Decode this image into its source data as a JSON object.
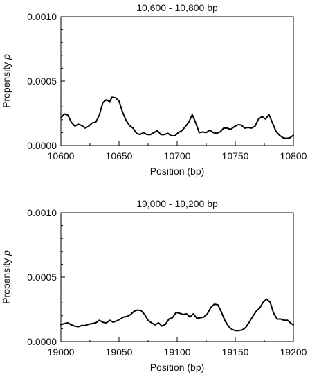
{
  "chart_data": [
    {
      "type": "line",
      "title": "10,600 - 10,800 bp",
      "xlabel": "Position (bp)",
      "ylabel_main": "Propensity ",
      "ylabel_var": "p",
      "xlim": [
        10600,
        10800
      ],
      "ylim": [
        0,
        0.001
      ],
      "xticks": [
        10600,
        10650,
        10700,
        10750,
        10800
      ],
      "xtick_labels": [
        "10600",
        "10650",
        "10700",
        "10750",
        "10800"
      ],
      "yticks": [
        0,
        0.0005,
        0.001
      ],
      "ytick_labels": [
        "0.0000",
        "0.0005",
        "0.0010"
      ],
      "grid": false,
      "legend": "none",
      "series": [
        {
          "x": [
            10600,
            10603,
            10606,
            10609,
            10612,
            10615,
            10618,
            10621,
            10624,
            10627,
            10630,
            10633,
            10636,
            10639,
            10642,
            10644,
            10647,
            10650,
            10653,
            10656,
            10659,
            10662,
            10665,
            10668,
            10671,
            10674,
            10677,
            10680,
            10683,
            10686,
            10689,
            10692,
            10695,
            10698,
            10701,
            10704,
            10707,
            10710,
            10713,
            10716,
            10719,
            10722,
            10725,
            10728,
            10731,
            10734,
            10737,
            10740,
            10743,
            10746,
            10749,
            10752,
            10755,
            10758,
            10761,
            10764,
            10767,
            10770,
            10773,
            10776,
            10779,
            10782,
            10785,
            10788,
            10791,
            10794,
            10797,
            10800
          ],
          "values": [
            0.000215,
            0.000245,
            0.000235,
            0.00018,
            0.00015,
            0.000165,
            0.000155,
            0.000135,
            0.00015,
            0.000175,
            0.00018,
            0.000235,
            0.00033,
            0.000355,
            0.00034,
            0.000375,
            0.00037,
            0.000345,
            0.00026,
            0.000195,
            0.000155,
            0.000135,
            9.5e-05,
            8.5e-05,
            0.0001,
            8.5e-05,
            8.5e-05,
            0.0001,
            0.000115,
            8.5e-05,
            8.5e-05,
            9.5e-05,
            7.5e-05,
            7.5e-05,
            0.0001,
            0.000115,
            0.000145,
            0.00018,
            0.00024,
            0.000175,
            0.0001,
            0.000105,
            0.0001,
            0.00012,
            0.0001,
            9.5e-05,
            0.000105,
            0.000135,
            0.000135,
            0.000125,
            0.000145,
            0.00016,
            0.00016,
            0.000135,
            0.00014,
            0.000135,
            0.00015,
            0.000205,
            0.000225,
            0.000205,
            0.00024,
            0.000175,
            0.00011,
            8e-05,
            6e-05,
            5.5e-05,
            6e-05,
            8e-05
          ]
        }
      ]
    },
    {
      "type": "line",
      "title": "19,000 - 19,200 bp",
      "xlabel": "Position (bp)",
      "ylabel_main": "Propensity ",
      "ylabel_var": "p",
      "xlim": [
        19000,
        19200
      ],
      "ylim": [
        0,
        0.001
      ],
      "xticks": [
        19000,
        19050,
        19100,
        19150,
        19200
      ],
      "xtick_labels": [
        "19000",
        "19050",
        "19100",
        "19150",
        "19200"
      ],
      "yticks": [
        0,
        0.0005,
        0.001
      ],
      "ytick_labels": [
        "0.0000",
        "0.0005",
        "0.0010"
      ],
      "grid": false,
      "legend": "none",
      "series": [
        {
          "x": [
            19000,
            19003,
            19006,
            19009,
            19012,
            19015,
            19018,
            19021,
            19024,
            19027,
            19030,
            19033,
            19036,
            19039,
            19042,
            19045,
            19048,
            19051,
            19054,
            19057,
            19060,
            19063,
            19066,
            19069,
            19072,
            19075,
            19078,
            19081,
            19084,
            19087,
            19090,
            19093,
            19096,
            19099,
            19102,
            19105,
            19108,
            19111,
            19114,
            19117,
            19120,
            19123,
            19126,
            19129,
            19132,
            19135,
            19138,
            19141,
            19144,
            19147,
            19150,
            19153,
            19156,
            19159,
            19162,
            19165,
            19168,
            19171,
            19174,
            19177,
            19180,
            19183,
            19186,
            19189,
            19192,
            19195,
            19198,
            19200
          ],
          "values": [
            0.00013,
            0.00014,
            0.000145,
            0.00013,
            0.00012,
            0.000115,
            0.000125,
            0.000125,
            0.000135,
            0.00014,
            0.000145,
            0.000165,
            0.00015,
            0.000145,
            0.000165,
            0.00015,
            0.00016,
            0.000175,
            0.00019,
            0.000195,
            0.00021,
            0.000235,
            0.000245,
            0.00024,
            0.00021,
            0.000165,
            0.000145,
            0.00013,
            0.000145,
            0.00012,
            0.000135,
            0.000175,
            0.000185,
            0.000225,
            0.00022,
            0.00021,
            0.000215,
            0.00019,
            0.000215,
            0.00018,
            0.000185,
            0.00019,
            0.000215,
            0.000265,
            0.00029,
            0.000285,
            0.00023,
            0.000165,
            0.00012,
            9.5e-05,
            8.5e-05,
            8.5e-05,
            9e-05,
            0.00011,
            0.00015,
            0.000195,
            0.000235,
            0.00026,
            0.000305,
            0.00033,
            0.000305,
            0.00022,
            0.000175,
            0.000175,
            0.000165,
            0.000165,
            0.00014,
            0.00013
          ]
        }
      ]
    }
  ]
}
